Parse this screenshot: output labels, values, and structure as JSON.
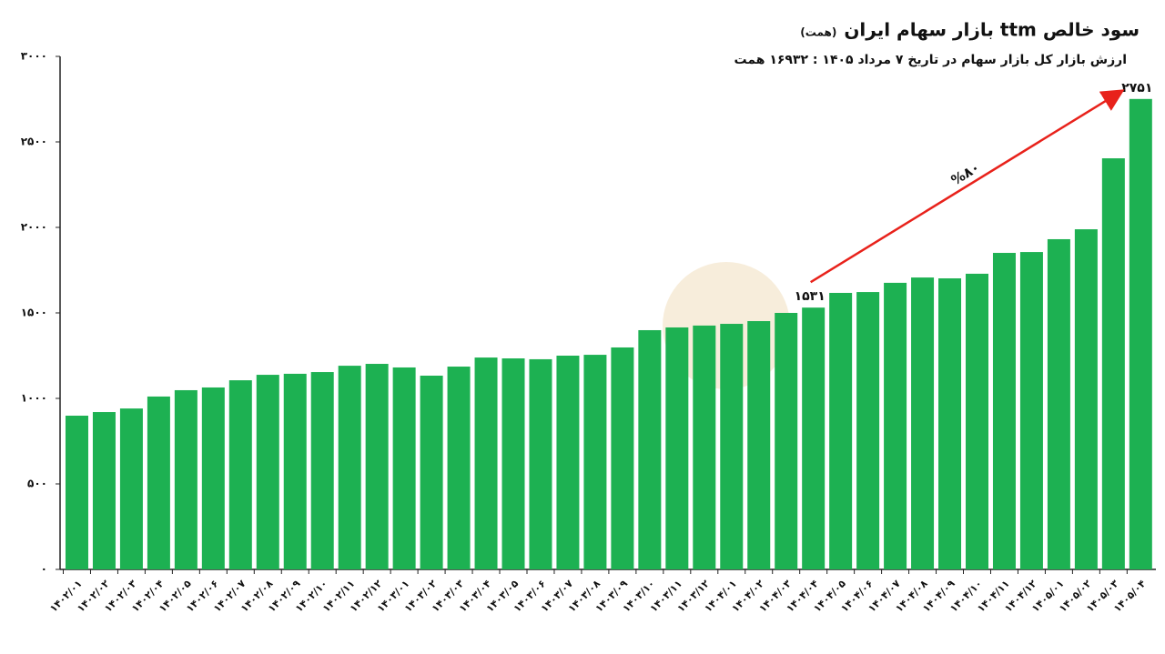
{
  "chart_data": {
    "type": "bar",
    "title": "سود خالص ttm بازار سهام ایران",
    "title_unit": "(همت)",
    "subtitle": "ارزش بازار کل بازار سهام در تاریخ ۷ مرداد ۱۴۰۵ : ۱۶۹۳۲ همت",
    "annotation": "%۸۰",
    "categories": [
      "۱۴۰۲/۰۱",
      "۱۴۰۲/۰۲",
      "۱۴۰۲/۰۳",
      "۱۴۰۲/۰۴",
      "۱۴۰۲/۰۵",
      "۱۴۰۲/۰۶",
      "۱۴۰۲/۰۷",
      "۱۴۰۲/۰۸",
      "۱۴۰۲/۰۹",
      "۱۴۰۲/۱۰",
      "۱۴۰۲/۱۱",
      "۱۴۰۲/۱۲",
      "۱۴۰۳/۰۱",
      "۱۴۰۳/۰۲",
      "۱۴۰۳/۰۳",
      "۱۴۰۳/۰۴",
      "۱۴۰۳/۰۵",
      "۱۴۰۳/۰۶",
      "۱۴۰۳/۰۷",
      "۱۴۰۳/۰۸",
      "۱۴۰۳/۰۹",
      "۱۴۰۳/۱۰",
      "۱۴۰۳/۱۱",
      "۱۴۰۳/۱۲",
      "۱۴۰۴/۰۱",
      "۱۴۰۴/۰۲",
      "۱۴۰۴/۰۳",
      "۱۴۰۴/۰۴",
      "۱۴۰۴/۰۵",
      "۱۴۰۴/۰۶",
      "۱۴۰۴/۰۷",
      "۱۴۰۴/۰۸",
      "۱۴۰۴/۰۹",
      "۱۴۰۴/۱۰",
      "۱۴۰۴/۱۱",
      "۱۴۰۴/۱۲",
      "۱۴۰۵/۰۱",
      "۱۴۰۵/۰۲",
      "۱۴۰۵/۰۳",
      "۱۴۰۵/۰۴"
    ],
    "values": [
      899,
      920,
      941,
      1011,
      1048,
      1064,
      1106,
      1138,
      1144,
      1154,
      1191,
      1202,
      1181,
      1133,
      1186,
      1239,
      1234,
      1229,
      1250,
      1255,
      1298,
      1399,
      1415,
      1426,
      1436,
      1452,
      1500,
      1531,
      1617,
      1622,
      1676,
      1707,
      1702,
      1729,
      1851,
      1856,
      1931,
      1989,
      2404,
      2751
    ],
    "value_labels": [
      null,
      null,
      null,
      null,
      null,
      null,
      null,
      null,
      null,
      null,
      null,
      null,
      null,
      null,
      null,
      null,
      null,
      null,
      null,
      null,
      null,
      null,
      null,
      null,
      null,
      null,
      null,
      "۱۵۳۱",
      null,
      null,
      null,
      null,
      null,
      null,
      null,
      null,
      null,
      null,
      null,
      "۲۷۵۱"
    ],
    "color": "#1db152",
    "ylim": [
      0,
      3000
    ],
    "yticks": [
      {
        "value": 0,
        "label": "۰"
      },
      {
        "value": 500,
        "label": "۵۰۰"
      },
      {
        "value": 1000,
        "label": "۱۰۰۰"
      },
      {
        "value": 1500,
        "label": "۱۵۰۰"
      },
      {
        "value": 2000,
        "label": "۲۰۰۰"
      },
      {
        "value": 2500,
        "label": "۲۵۰۰"
      },
      {
        "value": 3000,
        "label": "۳۰۰۰"
      }
    ],
    "grid": false
  }
}
